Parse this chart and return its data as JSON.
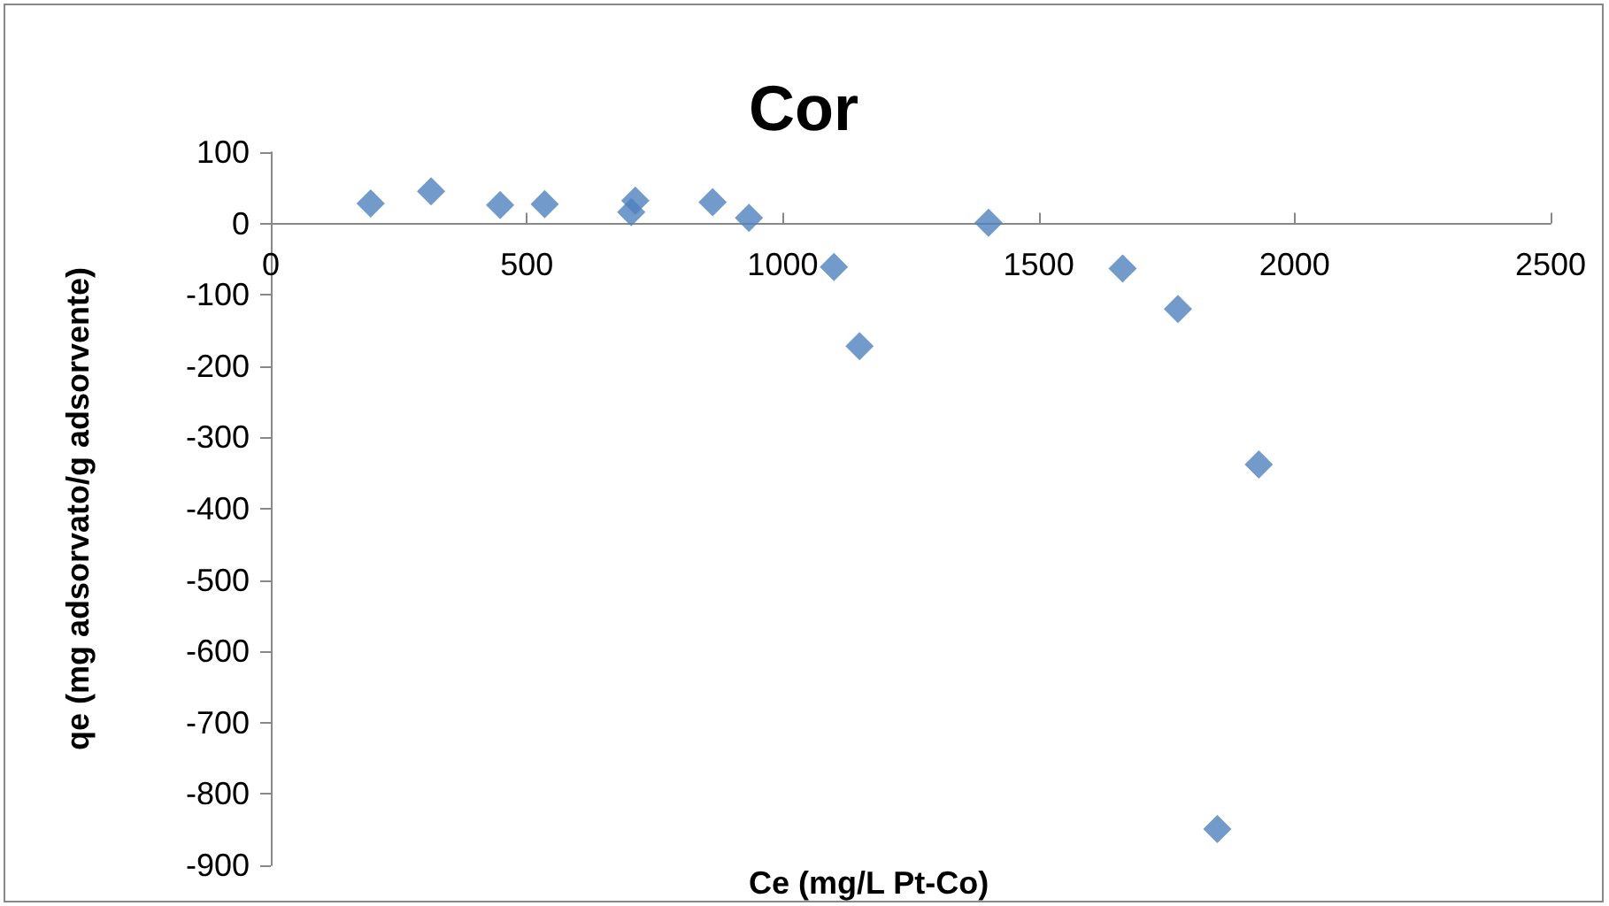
{
  "chart_data": {
    "type": "scatter",
    "title": "Cor",
    "xlabel": "Ce (mg/L Pt-Co)",
    "ylabel": "qe (mg adsorvato/g adsorvente)",
    "x": [
      195,
      313,
      448,
      535,
      704,
      712,
      863,
      934,
      1100,
      1150,
      1402,
      1664,
      1772,
      1930,
      1849
    ],
    "series": [
      {
        "color": "#4f81bd",
        "values": [
          28,
          45,
          26,
          27,
          16,
          32,
          30,
          8,
          -61,
          -172,
          1,
          -63,
          -120,
          -338,
          -849
        ]
      }
    ],
    "xlim": [
      0,
      2500
    ],
    "xticks": [
      0,
      500,
      1000,
      1500,
      2000,
      2500
    ],
    "ylim": [
      -900,
      100
    ],
    "yticks": [
      100,
      0,
      -100,
      -200,
      -300,
      -400,
      -500,
      -600,
      -700,
      -800,
      -900
    ],
    "marker": "diamond"
  }
}
